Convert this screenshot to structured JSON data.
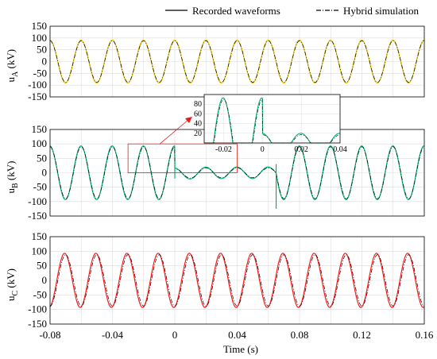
{
  "legend": {
    "recorded": "Recorded waveforms",
    "hybrid": "Hybrid simulation"
  },
  "colors": {
    "recorded": "#000000",
    "phaseA": "#e8c200",
    "phaseB": "#00b36b",
    "phaseC": "#ff1a1a",
    "grid": "#dcdcdc",
    "zoomBox": "#e02020"
  },
  "chart_data": [
    {
      "type": "line",
      "panel": "A",
      "ylabel_main": "u",
      "ylabel_sub": "A",
      "ylabel_unit": " (kV)",
      "xlim": [
        -0.08,
        0.16
      ],
      "ylim": [
        -150,
        150
      ],
      "yticks": [
        "150",
        "100",
        "50",
        "0",
        "-50",
        "-100",
        "-150"
      ],
      "frequency_hz": 50,
      "series": [
        {
          "name": "Recorded waveforms",
          "amplitude_kv": 88,
          "phase_deg": 0
        },
        {
          "name": "Hybrid simulation",
          "amplitude_kv": 91,
          "phase_deg": 2
        }
      ],
      "grid": true
    },
    {
      "type": "line",
      "panel": "B",
      "ylabel_main": "u",
      "ylabel_sub": "B",
      "ylabel_unit": " (kV)",
      "xlim": [
        -0.08,
        0.16
      ],
      "ylim": [
        -150,
        150
      ],
      "yticks": [
        "150",
        "100",
        "50",
        "0",
        "-50",
        "-100",
        "-150"
      ],
      "frequency_hz": 50,
      "fault_interval_s": [
        0.0,
        0.065
      ],
      "series": [
        {
          "name": "Recorded waveforms",
          "amplitude_kv": 90,
          "fault_amplitude_kv": 17
        },
        {
          "name": "Hybrid simulation",
          "amplitude_kv": 93,
          "fault_amplitude_kv": 20
        }
      ],
      "inset": {
        "xlim": [
          -0.03,
          0.04
        ],
        "ylim": [
          0,
          100
        ],
        "xticks": [
          "-0.02",
          "0",
          "0.02",
          "0.04"
        ],
        "yticks": [
          "80",
          "60",
          "40",
          "20"
        ],
        "source_box": {
          "x": [
            -0.03,
            0.04
          ],
          "y": [
            0,
            100
          ]
        }
      },
      "grid": true
    },
    {
      "type": "line",
      "panel": "C",
      "ylabel_main": "u",
      "ylabel_sub": "C",
      "ylabel_unit": " (kV)",
      "xlabel": "Time (s)",
      "xlim": [
        -0.08,
        0.16
      ],
      "ylim": [
        -150,
        150
      ],
      "yticks": [
        "150",
        "100",
        "50",
        "0",
        "-50",
        "-100",
        "-150"
      ],
      "xticks": [
        "-0.08",
        "-0.04",
        "0",
        "0.04",
        "0.08",
        "0.12",
        "0.16"
      ],
      "frequency_hz": 50,
      "series": [
        {
          "name": "Recorded waveforms",
          "amplitude_kv": 88,
          "phase_deg": 0
        },
        {
          "name": "Hybrid simulation",
          "amplitude_kv": 93,
          "phase_deg": 12
        }
      ],
      "grid": true
    }
  ]
}
